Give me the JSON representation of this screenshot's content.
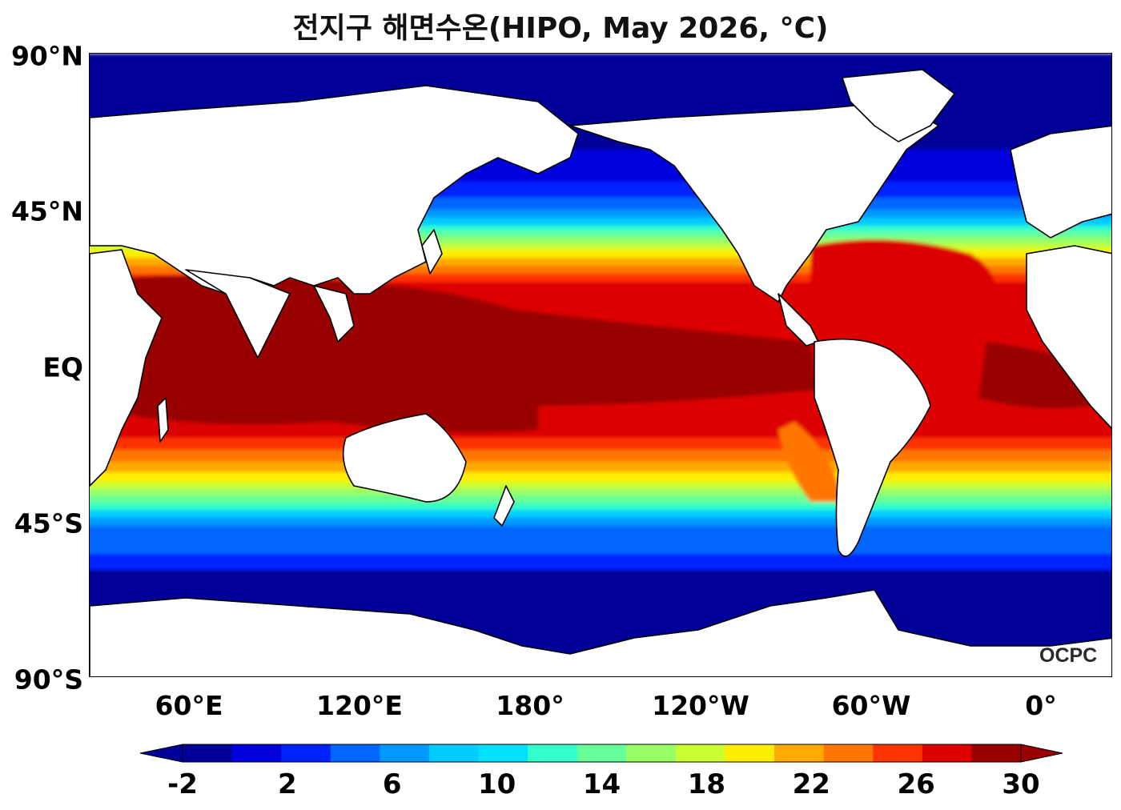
{
  "title": "전지구 해면수온(HIPO, May 2026, °C)",
  "logo_text": "OCPC",
  "lat_labels": [
    "90°N",
    "45°N",
    "EQ",
    "45°S",
    "90°S"
  ],
  "lon_labels": [
    "60°E",
    "120°E",
    "180°",
    "120°W",
    "60°W",
    "0°"
  ],
  "colorbar": {
    "tick_labels": [
      "-2",
      "2",
      "6",
      "10",
      "14",
      "18",
      "22",
      "26",
      "30"
    ],
    "levels": [
      -2,
      0,
      2,
      4,
      6,
      8,
      10,
      12,
      14,
      16,
      18,
      20,
      22,
      24,
      26,
      28,
      30
    ],
    "colors": [
      "#000099",
      "#0000dd",
      "#0022ff",
      "#0066ff",
      "#0099ff",
      "#00ccff",
      "#00e0ff",
      "#33ffcc",
      "#66ff99",
      "#99ff66",
      "#ccff33",
      "#ffee00",
      "#ffaa00",
      "#ff7700",
      "#ff3300",
      "#dd0000",
      "#990000"
    ],
    "extend": "both"
  },
  "land_color": "#ffffff",
  "coastline_color": "#000000"
}
